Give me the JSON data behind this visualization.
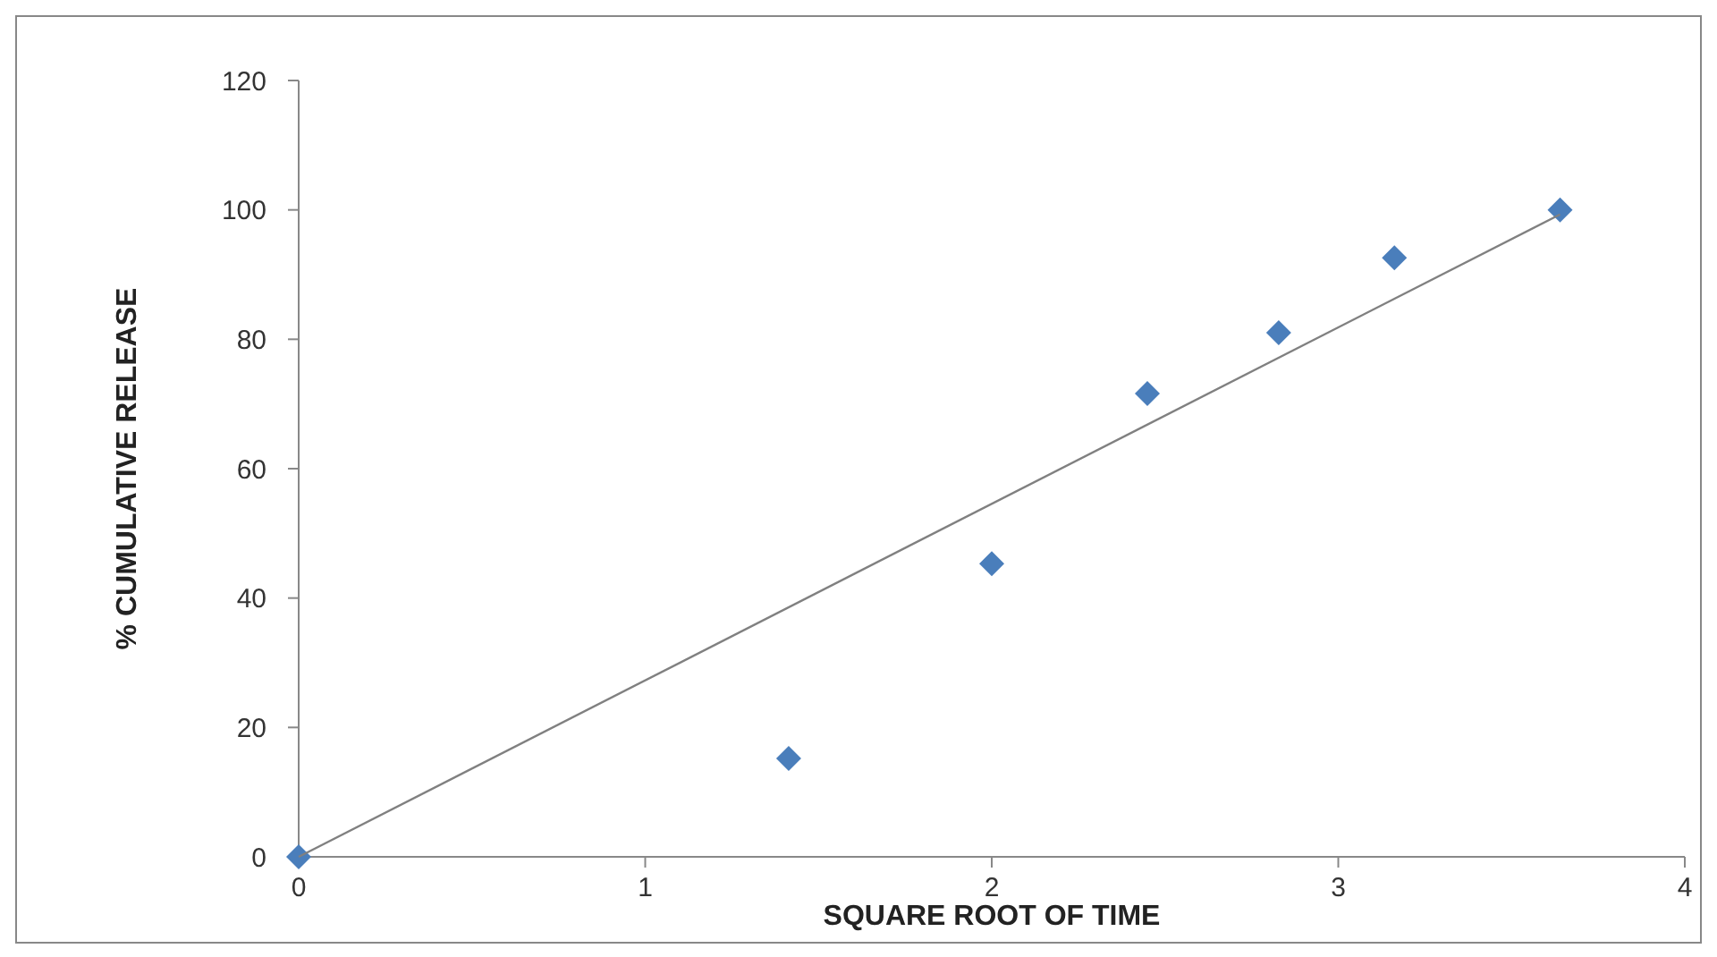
{
  "chart_data": {
    "type": "scatter",
    "xlabel": "SQUARE ROOT OF TIME",
    "ylabel": "% CUMULATIVE RELEASE",
    "xlim": [
      0,
      4
    ],
    "xticks": [
      0,
      1,
      2,
      3,
      4
    ],
    "ylim": [
      0,
      120
    ],
    "yticks": [
      0,
      20,
      40,
      60,
      80,
      100,
      120
    ],
    "grid": false,
    "marker": "diamond",
    "series": [
      {
        "color": "#4a7ebb",
        "x": [
          0,
          1.414,
          2,
          2.449,
          2.828,
          3.162,
          3.64
        ],
        "values": [
          0,
          15.2,
          45.3,
          71.6,
          81,
          92.6,
          100
        ]
      },
      {
        "type": "line",
        "color": "#808080",
        "x": [
          0,
          3.64
        ],
        "values": [
          0,
          99.3
        ],
        "marker": "none",
        "line_style": "solid"
      }
    ]
  }
}
